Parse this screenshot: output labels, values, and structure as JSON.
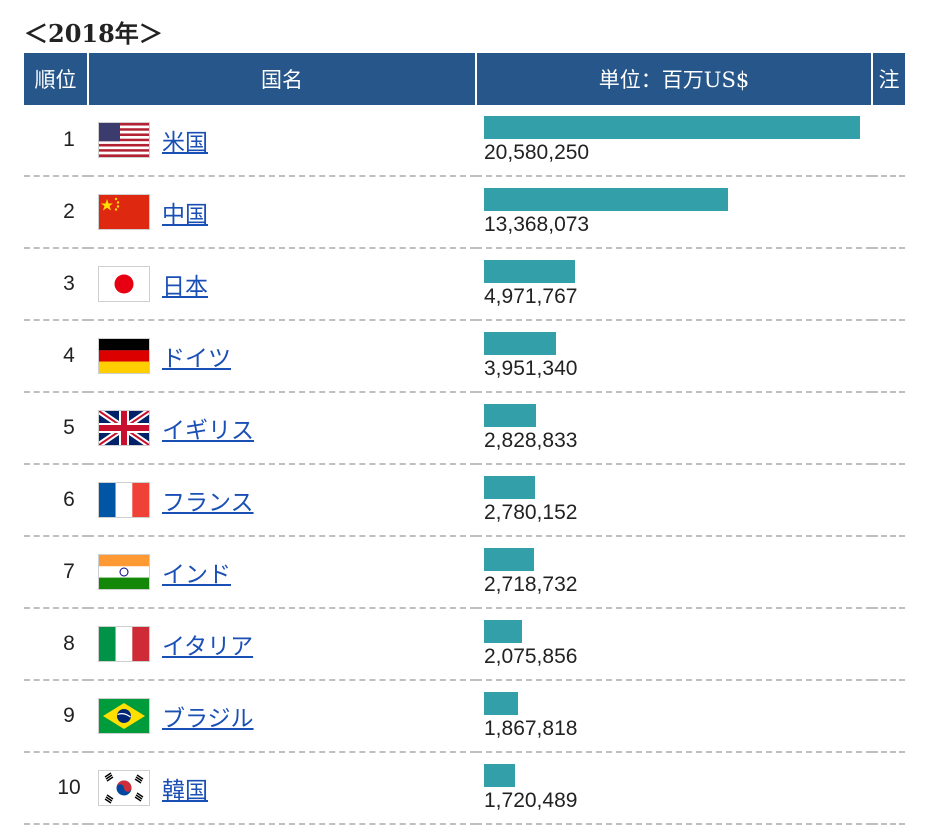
{
  "page": {
    "year_label": "＜2018年＞"
  },
  "table": {
    "headers": {
      "rank": "順位",
      "name": "国名",
      "unit": "単位：百万US$",
      "note": "注"
    }
  },
  "colors": {
    "header_bg": "#27578a",
    "bar": "#33a0a9",
    "link": "#1a4fb5"
  },
  "chart_data": {
    "type": "bar",
    "unit": "百万US$",
    "max_value": 20580250,
    "rows": [
      {
        "rank": "1",
        "name": "米国",
        "value": 20580250,
        "value_label": "20,580,250",
        "flag": "flag-usa-icon"
      },
      {
        "rank": "2",
        "name": "中国",
        "value": 13368073,
        "value_label": "13,368,073",
        "flag": "flag-china-icon"
      },
      {
        "rank": "3",
        "name": "日本",
        "value": 4971767,
        "value_label": "4,971,767",
        "flag": "flag-japan-icon"
      },
      {
        "rank": "4",
        "name": "ドイツ",
        "value": 3951340,
        "value_label": "3,951,340",
        "flag": "flag-germany-icon"
      },
      {
        "rank": "5",
        "name": "イギリス",
        "value": 2828833,
        "value_label": "2,828,833",
        "flag": "flag-uk-icon"
      },
      {
        "rank": "6",
        "name": "フランス",
        "value": 2780152,
        "value_label": "2,780,152",
        "flag": "flag-france-icon"
      },
      {
        "rank": "7",
        "name": "インド",
        "value": 2718732,
        "value_label": "2,718,732",
        "flag": "flag-india-icon"
      },
      {
        "rank": "8",
        "name": "イタリア",
        "value": 2075856,
        "value_label": "2,075,856",
        "flag": "flag-italy-icon"
      },
      {
        "rank": "9",
        "name": "ブラジル",
        "value": 1867818,
        "value_label": "1,867,818",
        "flag": "flag-brazil-icon"
      },
      {
        "rank": "10",
        "name": "韓国",
        "value": 1720489,
        "value_label": "1,720,489",
        "flag": "flag-korea-icon"
      }
    ]
  }
}
